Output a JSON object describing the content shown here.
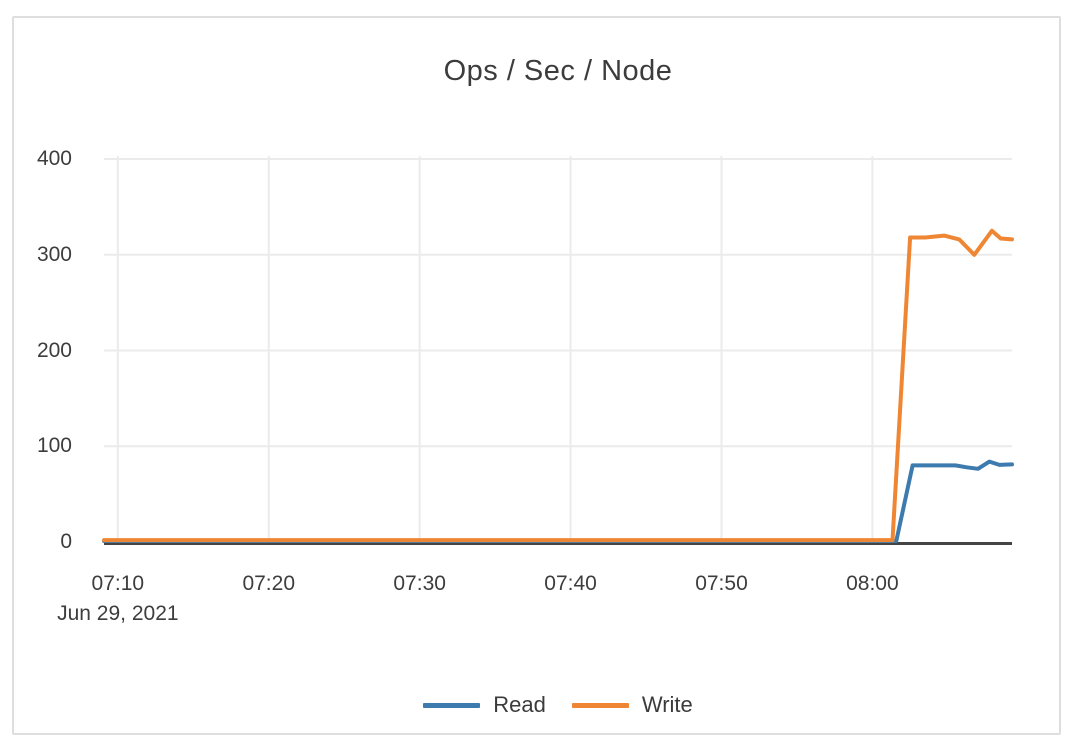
{
  "card": {
    "background": "#ffffff",
    "border_color": "#dedede"
  },
  "chart_data": {
    "type": "line",
    "title": "Ops / Sec / Node",
    "text_color": "#3d3d3d",
    "grid": {
      "color": "#ebebeb",
      "zero_line_color": "#444444"
    },
    "x_axis": {
      "domain": [
        "07:09:05",
        "08:09:15"
      ],
      "tick_times": [
        "07:10",
        "07:20",
        "07:30",
        "07:40",
        "07:50",
        "08:00"
      ],
      "tick_labels": [
        "07:10",
        "07:20",
        "07:30",
        "07:40",
        "07:50",
        "08:00"
      ],
      "date_label": "Jun 29, 2021"
    },
    "y_axis": {
      "range": [
        0,
        400
      ],
      "ticks": [
        0,
        100,
        200,
        300,
        400
      ]
    },
    "legend": {
      "position": "bottom",
      "entries": [
        "Read",
        "Write"
      ]
    },
    "series": [
      {
        "name": "Read",
        "color": "#3d7aad",
        "points": [
          [
            "07:09:05",
            1
          ],
          [
            "07:20:00",
            1
          ],
          [
            "07:30:00",
            1
          ],
          [
            "07:40:00",
            1
          ],
          [
            "07:50:00",
            1
          ],
          [
            "08:00:00",
            1
          ],
          [
            "08:01:35",
            1
          ],
          [
            "08:02:40",
            80
          ],
          [
            "08:04:30",
            80
          ],
          [
            "08:05:30",
            80
          ],
          [
            "08:06:15",
            78
          ],
          [
            "08:07:00",
            76.5
          ],
          [
            "08:07:45",
            84
          ],
          [
            "08:08:25",
            80.5
          ],
          [
            "08:09:15",
            81
          ]
        ]
      },
      {
        "name": "Write",
        "color": "#ef8633",
        "points": [
          [
            "07:09:05",
            2
          ],
          [
            "07:20:00",
            2
          ],
          [
            "07:30:00",
            2
          ],
          [
            "07:40:00",
            2
          ],
          [
            "07:50:00",
            2
          ],
          [
            "08:00:00",
            2
          ],
          [
            "08:01:20",
            2
          ],
          [
            "08:02:30",
            318
          ],
          [
            "08:03:30",
            318
          ],
          [
            "08:04:45",
            320
          ],
          [
            "08:05:45",
            316
          ],
          [
            "08:06:45",
            300
          ],
          [
            "08:07:55",
            325
          ],
          [
            "08:08:30",
            317
          ],
          [
            "08:09:15",
            316
          ]
        ]
      }
    ]
  }
}
